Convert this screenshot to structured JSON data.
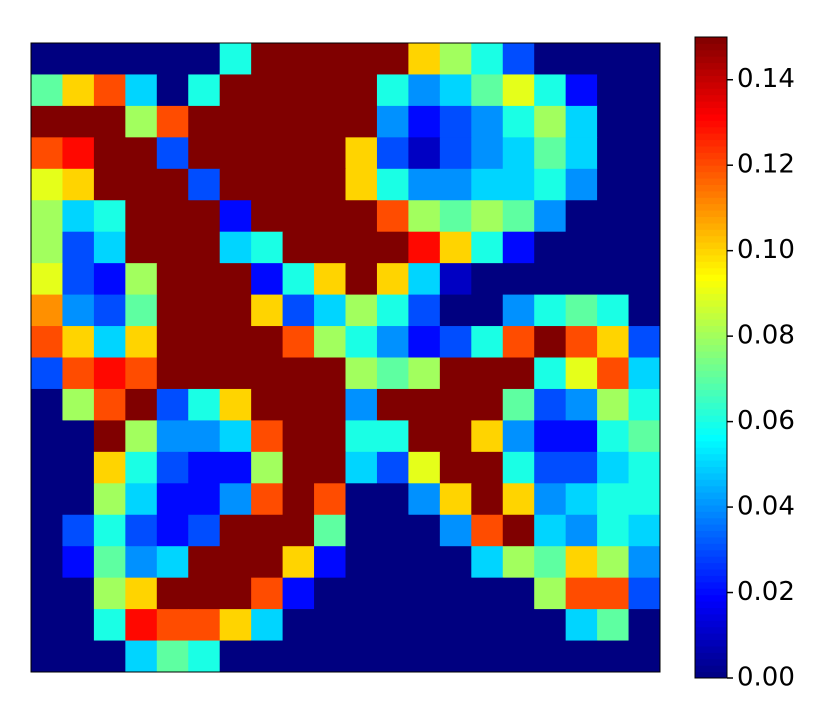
{
  "chart_data": {
    "type": "heatmap",
    "colormap": "jet",
    "values": [
      [
        0,
        0,
        0,
        0,
        0,
        0,
        0.06,
        0.15,
        0.15,
        0.15,
        0.15,
        0.15,
        0.1,
        0.08,
        0.06,
        0.03,
        0,
        0,
        0,
        0
      ],
      [
        0.07,
        0.1,
        0.12,
        0.05,
        0,
        0.06,
        0.15,
        0.15,
        0.15,
        0.15,
        0.15,
        0.06,
        0.04,
        0.05,
        0.07,
        0.09,
        0.06,
        0.02,
        0,
        0
      ],
      [
        0.15,
        0.15,
        0.15,
        0.08,
        0.12,
        0.15,
        0.15,
        0.15,
        0.15,
        0.15,
        0.15,
        0.04,
        0.02,
        0.03,
        0.04,
        0.06,
        0.08,
        0.05,
        0,
        0
      ],
      [
        0.12,
        0.13,
        0.15,
        0.15,
        0.03,
        0.15,
        0.15,
        0.15,
        0.15,
        0.15,
        0.1,
        0.03,
        0.01,
        0.03,
        0.04,
        0.05,
        0.07,
        0.05,
        0,
        0
      ],
      [
        0.09,
        0.1,
        0.15,
        0.15,
        0.15,
        0.03,
        0.15,
        0.15,
        0.15,
        0.15,
        0.1,
        0.06,
        0.04,
        0.04,
        0.05,
        0.05,
        0.06,
        0.04,
        0,
        0
      ],
      [
        0.08,
        0.05,
        0.06,
        0.15,
        0.15,
        0.15,
        0.02,
        0.15,
        0.15,
        0.15,
        0.15,
        0.12,
        0.08,
        0.07,
        0.08,
        0.07,
        0.04,
        0,
        0,
        0
      ],
      [
        0.08,
        0.03,
        0.05,
        0.15,
        0.15,
        0.15,
        0.05,
        0.06,
        0.15,
        0.15,
        0.15,
        0.15,
        0.13,
        0.1,
        0.06,
        0.02,
        0,
        0,
        0,
        0
      ],
      [
        0.09,
        0.03,
        0.02,
        0.08,
        0.15,
        0.15,
        0.15,
        0.02,
        0.06,
        0.1,
        0.15,
        0.1,
        0.05,
        0.01,
        0,
        0,
        0,
        0,
        0,
        0
      ],
      [
        0.11,
        0.04,
        0.03,
        0.07,
        0.15,
        0.15,
        0.15,
        0.1,
        0.03,
        0.05,
        0.08,
        0.06,
        0.03,
        0,
        0,
        0.04,
        0.06,
        0.07,
        0.06,
        0
      ],
      [
        0.12,
        0.1,
        0.05,
        0.1,
        0.15,
        0.15,
        0.15,
        0.15,
        0.12,
        0.08,
        0.06,
        0.04,
        0.02,
        0.03,
        0.06,
        0.12,
        0.15,
        0.12,
        0.1,
        0.03
      ],
      [
        0.03,
        0.12,
        0.13,
        0.12,
        0.15,
        0.15,
        0.15,
        0.15,
        0.15,
        0.15,
        0.08,
        0.07,
        0.08,
        0.15,
        0.15,
        0.15,
        0.06,
        0.09,
        0.12,
        0.05
      ],
      [
        0,
        0.08,
        0.12,
        0.15,
        0.03,
        0.06,
        0.1,
        0.15,
        0.15,
        0.15,
        0.04,
        0.15,
        0.15,
        0.15,
        0.15,
        0.07,
        0.03,
        0.04,
        0.08,
        0.06
      ],
      [
        0,
        0,
        0.15,
        0.08,
        0.04,
        0.04,
        0.05,
        0.12,
        0.15,
        0.15,
        0.06,
        0.06,
        0.15,
        0.15,
        0.1,
        0.04,
        0.02,
        0.02,
        0.06,
        0.07
      ],
      [
        0,
        0,
        0.1,
        0.06,
        0.03,
        0.02,
        0.02,
        0.08,
        0.15,
        0.15,
        0.05,
        0.03,
        0.09,
        0.15,
        0.15,
        0.06,
        0.03,
        0.03,
        0.05,
        0.06
      ],
      [
        0,
        0,
        0.08,
        0.05,
        0.02,
        0.02,
        0.04,
        0.12,
        0.15,
        0.12,
        0,
        0,
        0.04,
        0.1,
        0.15,
        0.1,
        0.04,
        0.05,
        0.06,
        0.06
      ],
      [
        0,
        0.03,
        0.06,
        0.03,
        0.02,
        0.03,
        0.15,
        0.15,
        0.15,
        0.07,
        0,
        0,
        0,
        0.04,
        0.12,
        0.15,
        0.05,
        0.04,
        0.06,
        0.05
      ],
      [
        0,
        0.02,
        0.07,
        0.04,
        0.05,
        0.15,
        0.15,
        0.15,
        0.1,
        0.02,
        0,
        0,
        0,
        0,
        0.05,
        0.08,
        0.07,
        0.1,
        0.08,
        0.04
      ],
      [
        0,
        0,
        0.08,
        0.1,
        0.15,
        0.15,
        0.15,
        0.12,
        0.02,
        0,
        0,
        0,
        0,
        0,
        0,
        0,
        0.08,
        0.12,
        0.12,
        0.03
      ],
      [
        0,
        0,
        0.06,
        0.13,
        0.12,
        0.12,
        0.1,
        0.05,
        0,
        0,
        0,
        0,
        0,
        0,
        0,
        0,
        0,
        0.05,
        0.07,
        0
      ],
      [
        0,
        0,
        0,
        0.05,
        0.07,
        0.06,
        0,
        0,
        0,
        0,
        0,
        0,
        0,
        0,
        0,
        0,
        0,
        0,
        0,
        0
      ]
    ],
    "clim": [
      0,
      0.15
    ],
    "cticks": [
      {
        "value": 0,
        "label": "0.00"
      },
      {
        "value": 0.02,
        "label": "0.02"
      },
      {
        "value": 0.04,
        "label": "0.04"
      },
      {
        "value": 0.06,
        "label": "0.06"
      },
      {
        "value": 0.08,
        "label": "0.08"
      },
      {
        "value": 0.1,
        "label": "0.10"
      },
      {
        "value": 0.12,
        "label": "0.12"
      },
      {
        "value": 0.14,
        "label": "0.14"
      }
    ]
  }
}
